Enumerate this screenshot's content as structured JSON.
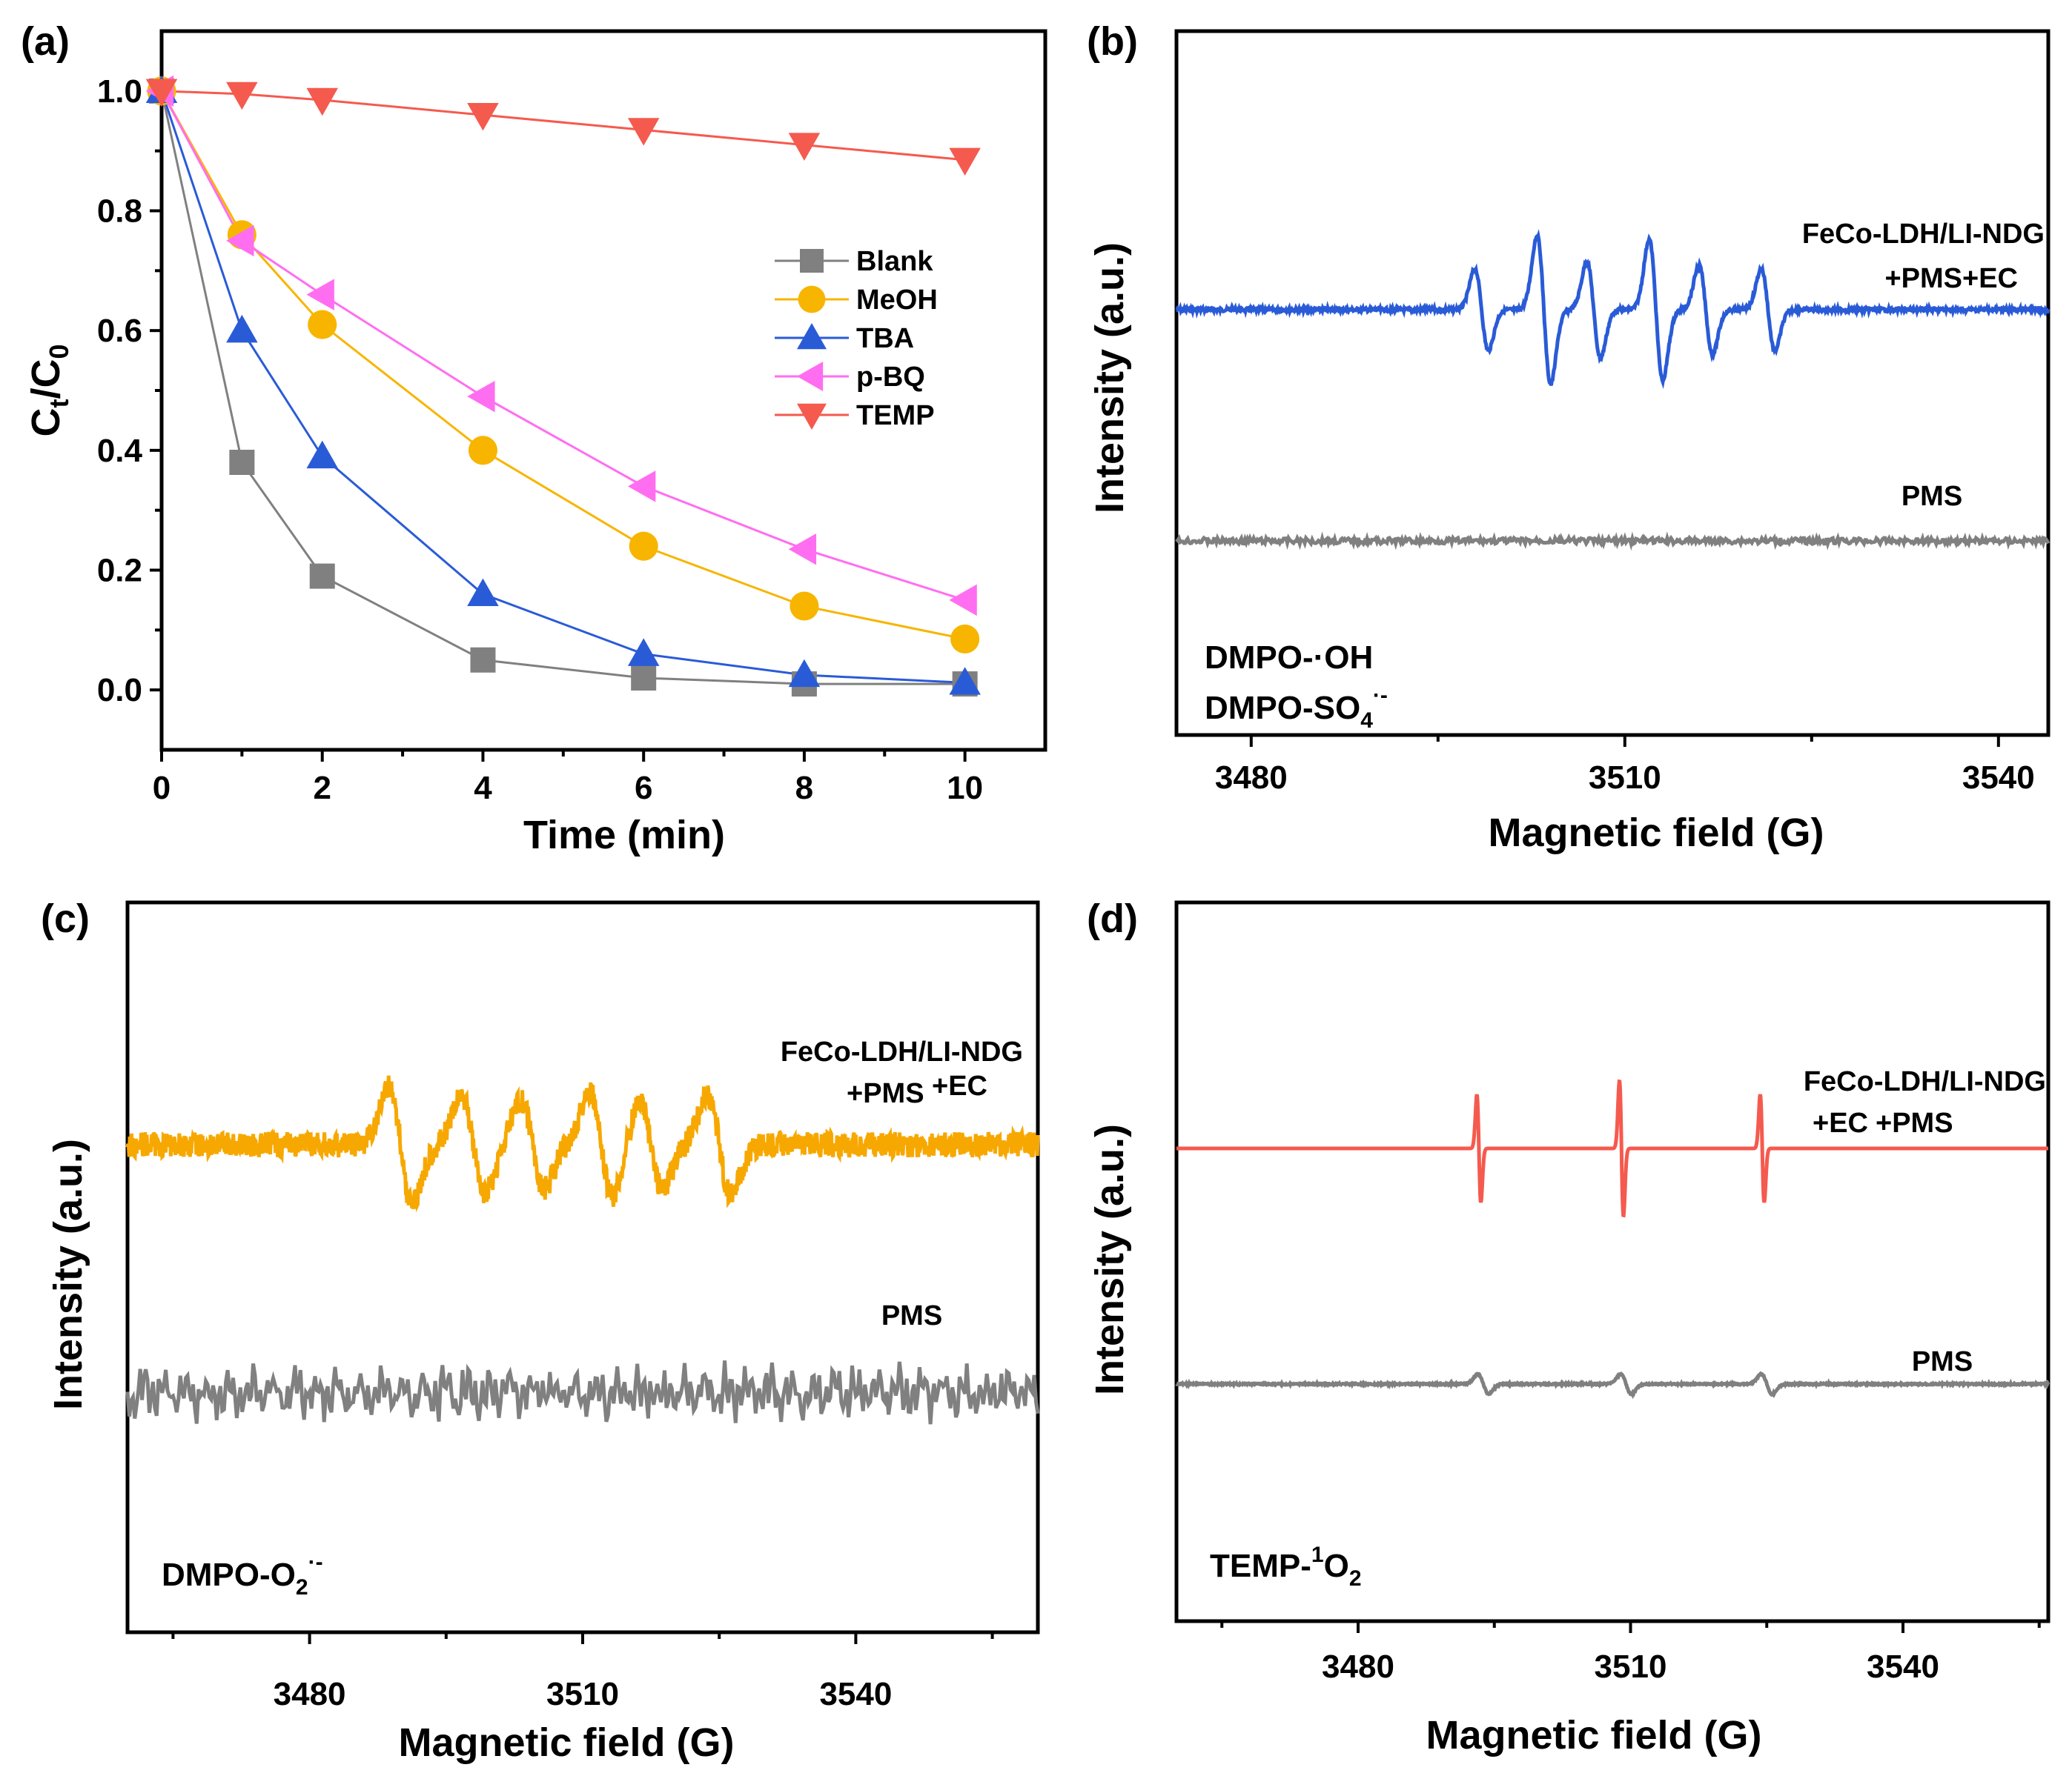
{
  "chart_data": [
    {
      "panel": "(a)",
      "type": "line",
      "xlabel": "Time (min)",
      "ylabel_main": "C",
      "ylabel_sub_t": "t",
      "ylabel_slash": "/C",
      "ylabel_sub_0": "0",
      "xlim": [
        0,
        11
      ],
      "ylim": [
        -0.1,
        1.1
      ],
      "xticks": [
        "0",
        "2",
        "4",
        "6",
        "8",
        "10"
      ],
      "yticks": [
        "0.0",
        "0.2",
        "0.4",
        "0.6",
        "0.8",
        "1.0"
      ],
      "x": [
        0,
        1,
        2,
        4,
        6,
        8,
        10
      ],
      "series": [
        {
          "name": "Blank",
          "color": "#808080",
          "marker": "square",
          "values": [
            1.0,
            0.38,
            0.19,
            0.05,
            0.02,
            0.01,
            0.01
          ]
        },
        {
          "name": "MeOH",
          "color": "#f7b500",
          "marker": "circle",
          "values": [
            1.0,
            0.76,
            0.61,
            0.4,
            0.24,
            0.14,
            0.085
          ]
        },
        {
          "name": "TBA",
          "color": "#2a5bd7",
          "marker": "triangle-up",
          "values": [
            1.0,
            0.6,
            0.39,
            0.16,
            0.06,
            0.025,
            0.012
          ]
        },
        {
          "name": "p-BQ",
          "color": "#ff6ef0",
          "marker": "triangle-left",
          "values": [
            1.0,
            0.75,
            0.66,
            0.49,
            0.34,
            0.235,
            0.15
          ]
        },
        {
          "name": "TEMP",
          "color": "#f55a4e",
          "marker": "triangle-down",
          "values": [
            1.0,
            0.995,
            0.985,
            0.96,
            0.935,
            0.91,
            0.885
          ]
        }
      ]
    },
    {
      "panel": "(b)",
      "type": "line",
      "xlabel": "Magnetic field (G)",
      "ylabel": "Intensity (a.u.)",
      "xlim": [
        3474,
        3544
      ],
      "xticks": [
        "3480",
        "3510",
        "3540"
      ],
      "series": [
        {
          "name": "FeCo-LDH/LI-NDG +PMS+EC",
          "color": "#2a5bd7"
        },
        {
          "name": "PMS",
          "color": "#808080"
        }
      ],
      "label_sample_1": "FeCo-LDH/LI-NDG",
      "label_sample_2": "+PMS+EC",
      "label_control": "PMS",
      "species_1": "DMPO-·OH",
      "species_2_base": "DMPO-SO",
      "species_2_sub": "4",
      "species_2_sup": "·-"
    },
    {
      "panel": "(c)",
      "type": "line",
      "xlabel": "Magnetic field (G)",
      "ylabel": "Intensity (a.u.)",
      "xlim": [
        3460,
        3560
      ],
      "xticks": [
        "3480",
        "3510",
        "3540"
      ],
      "series": [
        {
          "name": "FeCo-LDH/LI-NDG +PMS+EC",
          "color": "#f7a800"
        },
        {
          "name": "PMS",
          "color": "#808080"
        }
      ],
      "label_sample_1": "FeCo-LDH/LI-NDG",
      "label_sample_2a": "+PMS",
      "label_sample_2b": "+EC",
      "label_control": "PMS",
      "species_base": "DMPO-O",
      "species_sub": "2",
      "species_sup": "·-"
    },
    {
      "panel": "(d)",
      "type": "line",
      "xlabel": "Magnetic field (G)",
      "ylabel": "Intensity (a.u.)",
      "xlim": [
        3460,
        3556
      ],
      "xticks": [
        "3480",
        "3510",
        "3540"
      ],
      "series": [
        {
          "name": "FeCo-LDH/LI-NDG +EC +PMS",
          "color": "#f55a4e"
        },
        {
          "name": "PMS",
          "color": "#808080"
        }
      ],
      "label_sample_1": "FeCo-LDH/LI-NDG",
      "label_sample_2a": "+EC",
      "label_sample_2b": "+PMS",
      "label_control": "PMS",
      "species_base": "TEMP-",
      "species_sup": "1",
      "species_o": "O",
      "species_sub": "2"
    }
  ]
}
